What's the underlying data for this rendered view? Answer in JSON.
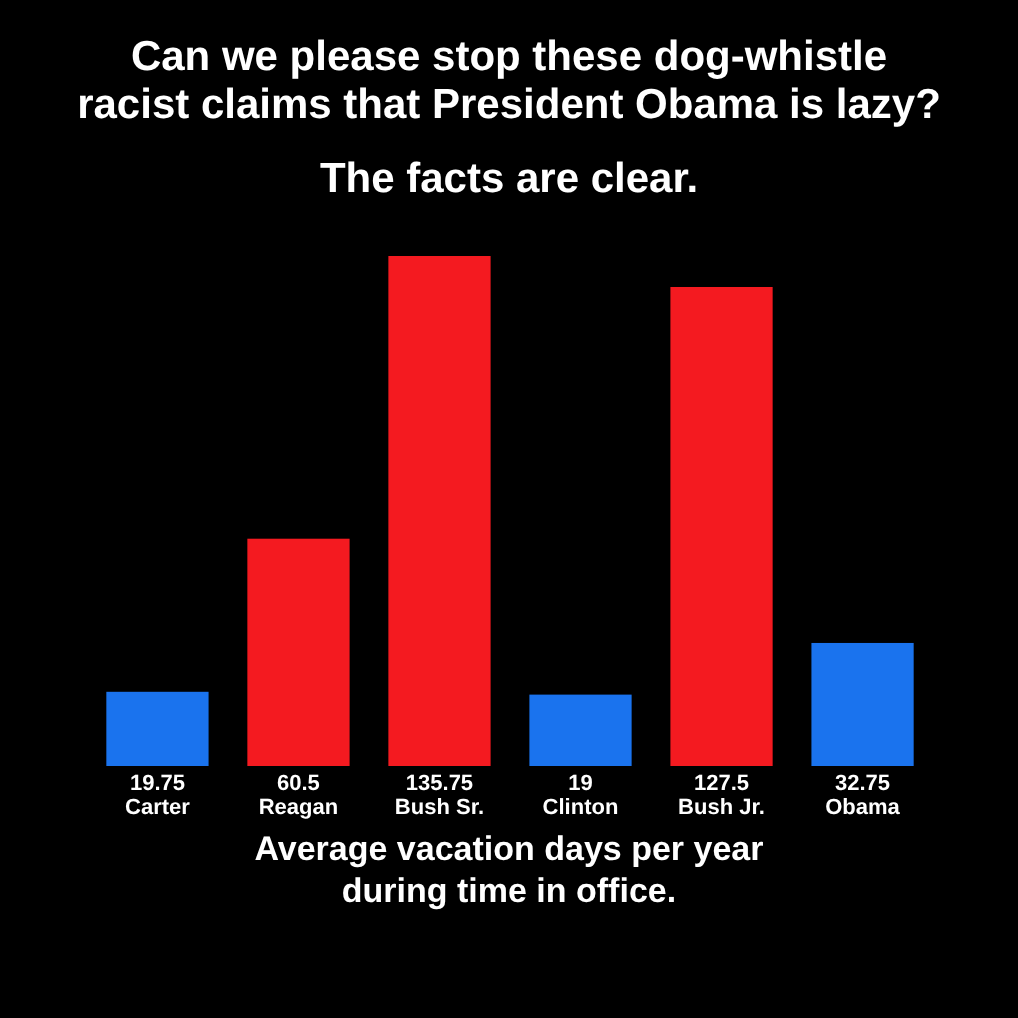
{
  "chart_data": {
    "type": "bar",
    "title": "Can we please stop these dog-whistle racist claims that President Obama is lazy?",
    "subtitle": "The facts are clear.",
    "xlabel": "Average vacation days per year during time in office.",
    "categories": [
      "Carter",
      "Reagan",
      "Bush Sr.",
      "Clinton",
      "Bush Jr.",
      "Obama"
    ],
    "values": [
      19.75,
      60.5,
      135.75,
      19,
      127.5,
      32.75
    ],
    "colors": [
      "#1a73ee",
      "#f41a20",
      "#f41a20",
      "#1a73ee",
      "#f41a20",
      "#1a73ee"
    ],
    "data_labels": true
  }
}
